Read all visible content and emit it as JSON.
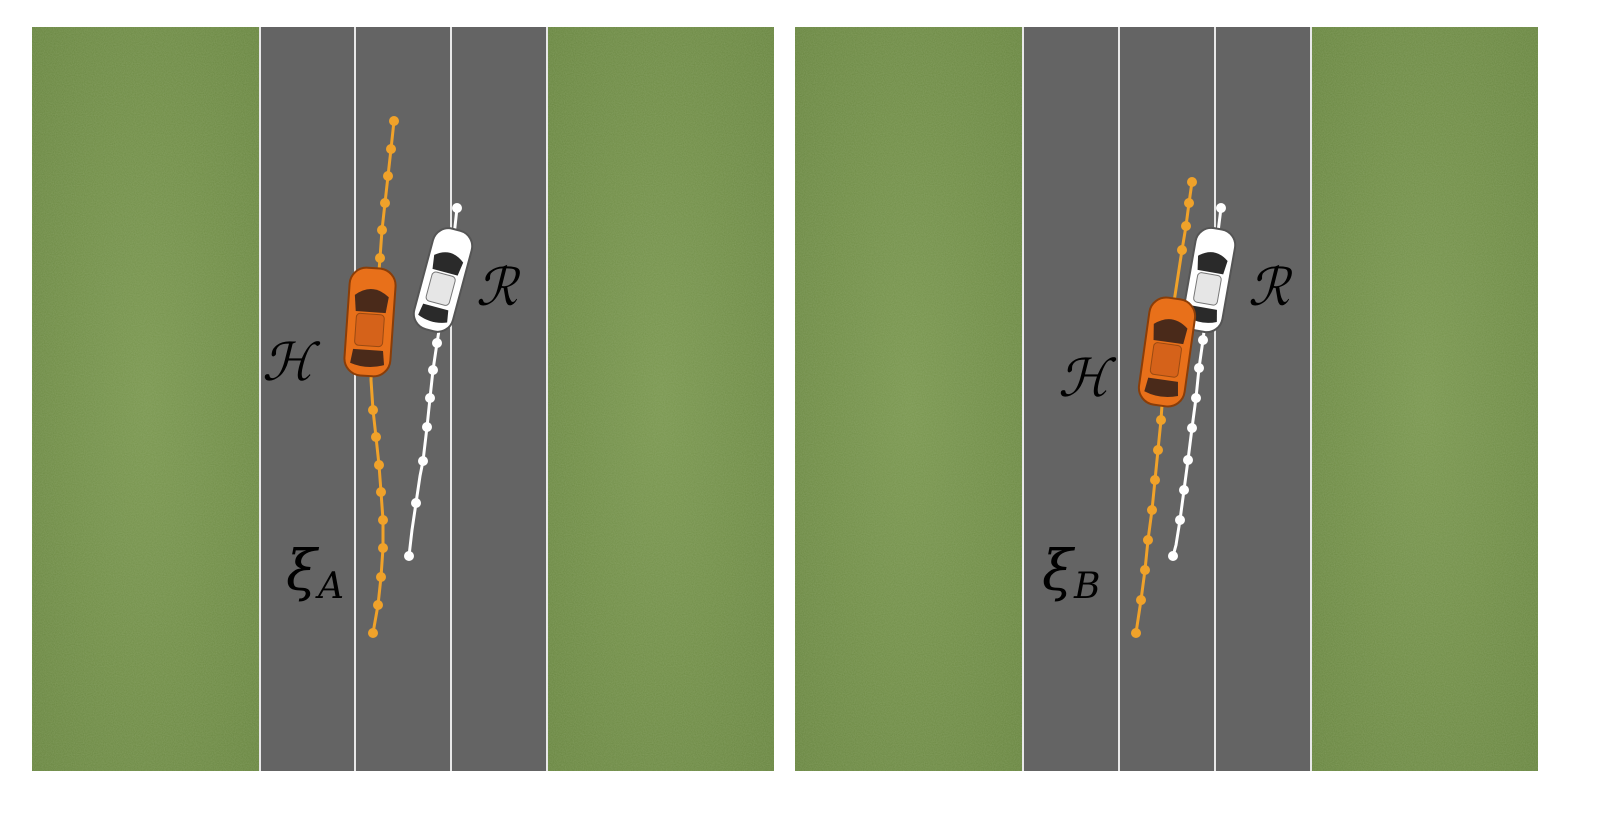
{
  "colors": {
    "grass": "#6f8c44",
    "road": "#646464",
    "lane_line": "#e8e8e8",
    "human_car": "#e8701a",
    "robot_car": "#ffffff",
    "human_traj": "#f0a22a",
    "robot_traj": "#ffffff"
  },
  "panels": [
    {
      "id": "A",
      "human_label": "ℋ",
      "robot_label": "ℛ",
      "traj_symbol": "ξ",
      "traj_subscript": "A"
    },
    {
      "id": "B",
      "human_label": "ℋ",
      "robot_label": "ℛ",
      "traj_symbol": "ξ",
      "traj_subscript": "B"
    }
  ]
}
